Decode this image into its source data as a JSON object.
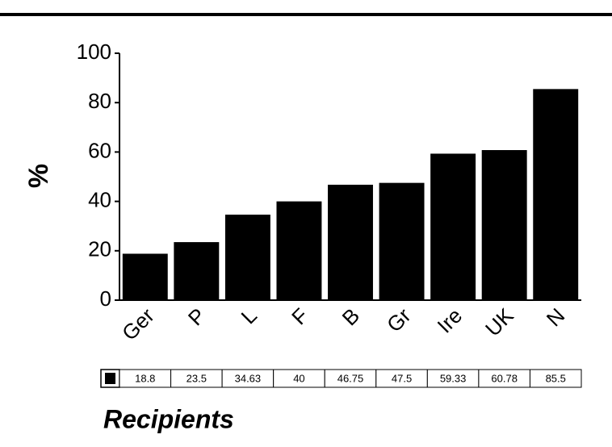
{
  "chart_data": {
    "type": "bar",
    "categories": [
      "Ger",
      "P",
      "L",
      "F",
      "B",
      "Gr",
      "Ire",
      "UK",
      "N"
    ],
    "values": [
      18.8,
      23.5,
      34.63,
      40,
      46.75,
      47.5,
      59.33,
      60.78,
      85.5
    ],
    "color": "#000000",
    "ylim": [
      0,
      100
    ],
    "yticks": [
      0,
      20,
      40,
      60,
      80,
      100
    ],
    "y_label": "%",
    "x_label": "Recipients"
  }
}
